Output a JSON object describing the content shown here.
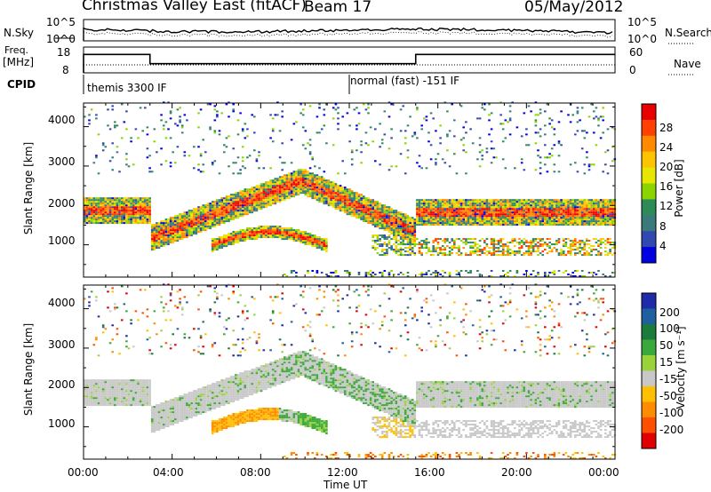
{
  "header": {
    "title": "Christmas Valley East (fitACF)",
    "beam": "Beam 17",
    "date": "05/May/2012"
  },
  "noise_panel": {
    "left_label": "N.Sky",
    "left_ticks": [
      "10^5",
      "10^0"
    ],
    "right_label": "N.Search",
    "right_ticks": [
      "10^5",
      "10^0"
    ]
  },
  "freq_panel": {
    "left_label_line1": "Freq.",
    "left_label_line2": "[MHz]",
    "left_ticks": [
      "18",
      "8"
    ],
    "right_label": "Nave",
    "right_ticks": [
      "60",
      "0"
    ]
  },
  "cpid": {
    "label": "CPID",
    "segments": [
      {
        "start_hour": 0.0,
        "text": "themis 3300 IF"
      },
      {
        "start_hour": 12.0,
        "text": "normal (fast) -151 IF"
      }
    ]
  },
  "chart_data": [
    {
      "type": "heatmap",
      "name": "power",
      "ylabel": "Slant Range [km]",
      "x_range_hours": [
        0,
        24
      ],
      "ylim": [
        180,
        4600
      ],
      "yticks": [
        "1000",
        "2000",
        "3000",
        "4000"
      ],
      "colorbar": {
        "label": "Power [dB]",
        "ticks": [
          "28",
          "24",
          "20",
          "16",
          "12",
          "8",
          "4"
        ],
        "colors": [
          "#e80000",
          "#ff4000",
          "#ff8a00",
          "#ffc400",
          "#e6e600",
          "#8cd400",
          "#2e8b57",
          "#3a7a7a",
          "#3048b0",
          "#0000e0"
        ]
      }
    },
    {
      "type": "heatmap",
      "name": "velocity",
      "xlabel": "Time UT",
      "ylabel": "Slant Range [km]",
      "x_range_hours": [
        0,
        24
      ],
      "xticks": [
        "00:00",
        "04:00",
        "08:00",
        "12:00",
        "16:00",
        "20:00",
        "00:00"
      ],
      "ylim": [
        180,
        4600
      ],
      "yticks": [
        "1000",
        "2000",
        "3000",
        "4000"
      ],
      "colorbar": {
        "label": "Velocity [m s⁻¹]",
        "ticks": [
          "200",
          "100",
          "50",
          "15",
          "-15",
          "-50",
          "-100",
          "-200"
        ],
        "colors": [
          "#1e2aa8",
          "#1f5fa0",
          "#1c7a3a",
          "#3aa83a",
          "#9ad23c",
          "#c8c8c8",
          "#ffc000",
          "#ff8c00",
          "#ff5000",
          "#e00000"
        ]
      }
    }
  ]
}
